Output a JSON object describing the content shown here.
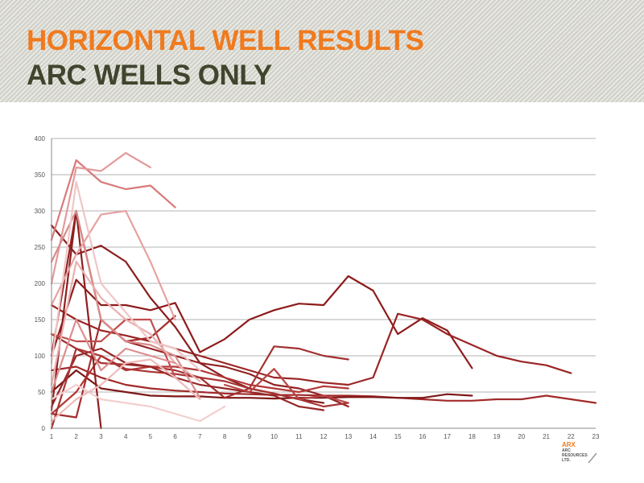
{
  "header": {
    "title": "HORIZONTAL WELL RESULTS",
    "subtitle": "ARC WELLS ONLY"
  },
  "logo": {
    "name": "ARX",
    "tagline": "ARC RESOURCES LTD."
  },
  "colors": {
    "title": "#f07a1e",
    "subtitle": "#41452e",
    "grid": "#9a9a9a"
  },
  "chart_data": {
    "type": "line",
    "title": "",
    "xlabel": "",
    "ylabel": "",
    "x_ticks": [
      1,
      2,
      3,
      4,
      5,
      6,
      7,
      8,
      9,
      10,
      11,
      12,
      13,
      14,
      15,
      16,
      17,
      18,
      19,
      20,
      21,
      22,
      23
    ],
    "y_ticks": [
      0,
      50,
      100,
      150,
      200,
      250,
      300,
      350,
      400
    ],
    "xlim": [
      1,
      23
    ],
    "ylim": [
      0,
      400
    ],
    "grid": "horizontal",
    "legend": "none",
    "series": [
      {
        "color": "#8e1b1b",
        "x": [
          1,
          2,
          3,
          4,
          5,
          6,
          7,
          8,
          9,
          10,
          11,
          12,
          13,
          14,
          15,
          16,
          17,
          18
        ],
        "y": [
          100,
          205,
          170,
          170,
          163,
          173,
          105,
          123,
          150,
          163,
          172,
          170,
          210,
          190,
          130,
          152,
          135,
          83
        ]
      },
      {
        "color": "#9b2424",
        "x": [
          1,
          2,
          3,
          4,
          5,
          6,
          7,
          8,
          9,
          10,
          11,
          12,
          13,
          14,
          15,
          16,
          17,
          18,
          19,
          20,
          21,
          22
        ],
        "y": [
          170,
          150,
          135,
          128,
          120,
          110,
          100,
          90,
          80,
          70,
          68,
          63,
          60,
          70,
          158,
          150,
          130,
          115,
          100,
          92,
          87,
          76
        ]
      },
      {
        "color": "#a22a2a",
        "x": [
          1,
          2,
          3,
          4,
          5,
          6,
          7,
          8,
          9,
          10,
          11,
          12,
          13,
          14,
          15,
          16,
          17,
          18,
          19,
          20,
          21,
          22,
          23
        ],
        "y": [
          80,
          85,
          70,
          60,
          55,
          52,
          50,
          48,
          47,
          46,
          46,
          45,
          45,
          44,
          42,
          40,
          38,
          38,
          40,
          40,
          45,
          40,
          35
        ]
      },
      {
        "color": "#7d1717",
        "x": [
          1,
          2,
          3,
          4,
          5,
          6,
          7,
          8,
          9,
          10,
          11,
          12,
          13,
          14,
          15,
          16,
          17,
          18
        ],
        "y": [
          50,
          80,
          55,
          50,
          45,
          44,
          44,
          42,
          42,
          41,
          42,
          42,
          43,
          43,
          42,
          42,
          47,
          45
        ]
      },
      {
        "color": "#8a1e1e",
        "x": [
          1,
          2,
          3,
          4,
          5,
          6,
          7,
          8,
          9,
          10,
          11,
          12
        ],
        "y": [
          280,
          240,
          252,
          230,
          180,
          140,
          90,
          70,
          55,
          48,
          40,
          35
        ]
      },
      {
        "color": "#932222",
        "x": [
          1,
          2,
          3,
          4,
          5,
          6,
          7,
          8,
          9,
          10,
          11,
          12,
          13
        ],
        "y": [
          100,
          300,
          150,
          120,
          110,
          100,
          90,
          85,
          75,
          60,
          55,
          45,
          30
        ]
      },
      {
        "color": "#a33030",
        "x": [
          1,
          2,
          3,
          4,
          5,
          6,
          7,
          8,
          9,
          10,
          11,
          12,
          13
        ],
        "y": [
          130,
          110,
          90,
          88,
          85,
          80,
          70,
          42,
          55,
          113,
          110,
          100,
          95
        ]
      },
      {
        "color": "#b33838",
        "x": [
          1,
          2,
          3,
          4,
          5,
          6,
          7,
          8,
          9,
          10,
          11,
          12,
          13
        ],
        "y": [
          20,
          50,
          100,
          80,
          85,
          85,
          80,
          70,
          60,
          55,
          50,
          58,
          55
        ]
      },
      {
        "color": "#962626",
        "x": [
          1,
          2,
          3,
          4,
          5,
          6,
          7,
          8,
          9,
          10,
          11,
          12
        ],
        "y": [
          30,
          100,
          110,
          90,
          85,
          70,
          60,
          55,
          50,
          45,
          30,
          25
        ]
      },
      {
        "color": "#a83333",
        "x": [
          1,
          2,
          3,
          4,
          5,
          6,
          7,
          8,
          9,
          10,
          11,
          12,
          13
        ],
        "y": [
          0,
          110,
          100,
          82,
          78,
          75,
          70,
          65,
          55,
          48,
          40,
          30,
          35
        ]
      },
      {
        "color": "#8c1f1f",
        "x": [
          1,
          2,
          3
        ],
        "y": [
          25,
          300,
          0
        ]
      },
      {
        "color": "#a52c2c",
        "x": [
          1,
          2,
          3,
          4,
          5,
          6
        ],
        "y": [
          20,
          15,
          150,
          120,
          125,
          155
        ]
      },
      {
        "color": "#b84444",
        "x": [
          8,
          9,
          10,
          11,
          12,
          13
        ],
        "y": [
          60,
          50,
          82,
          40,
          45,
          35
        ]
      },
      {
        "color": "#c14d4d",
        "x": [
          1,
          2,
          3,
          4,
          5,
          6
        ],
        "y": [
          130,
          120,
          120,
          150,
          150,
          70
        ]
      },
      {
        "color": "#d97a7a",
        "x": [
          1,
          2,
          3,
          4,
          5,
          6
        ],
        "y": [
          260,
          370,
          340,
          330,
          335,
          305
        ]
      },
      {
        "color": "#e49a9a",
        "x": [
          1,
          2,
          3,
          4,
          5
        ],
        "y": [
          200,
          360,
          355,
          380,
          360
        ]
      },
      {
        "color": "#d88a8a",
        "x": [
          1,
          2,
          3,
          4,
          5,
          6,
          7
        ],
        "y": [
          230,
          300,
          150,
          120,
          115,
          100,
          42
        ]
      },
      {
        "color": "#e6a2a2",
        "x": [
          1,
          2,
          3,
          4,
          5,
          6
        ],
        "y": [
          170,
          240,
          295,
          300,
          230,
          150
        ]
      },
      {
        "color": "#eab0b0",
        "x": [
          1,
          2,
          3,
          4,
          5,
          6,
          7
        ],
        "y": [
          60,
          230,
          180,
          150,
          130,
          90,
          65
        ]
      },
      {
        "color": "#f0c6c6",
        "x": [
          1,
          2,
          3,
          4,
          5,
          6,
          7
        ],
        "y": [
          90,
          340,
          200,
          160,
          120,
          110,
          80
        ]
      },
      {
        "color": "#f3cfcf",
        "x": [
          1,
          2,
          3,
          4,
          5,
          6,
          7,
          8
        ],
        "y": [
          40,
          60,
          40,
          35,
          30,
          20,
          10,
          30
        ]
      },
      {
        "color": "#eebcbc",
        "x": [
          1,
          2,
          3,
          4,
          5,
          6,
          7
        ],
        "y": [
          10,
          40,
          60,
          90,
          95,
          70,
          40
        ]
      },
      {
        "color": "#dd8e8e",
        "x": [
          1,
          2,
          3,
          4,
          5,
          6
        ],
        "y": [
          50,
          150,
          80,
          110,
          100,
          90
        ]
      }
    ]
  }
}
